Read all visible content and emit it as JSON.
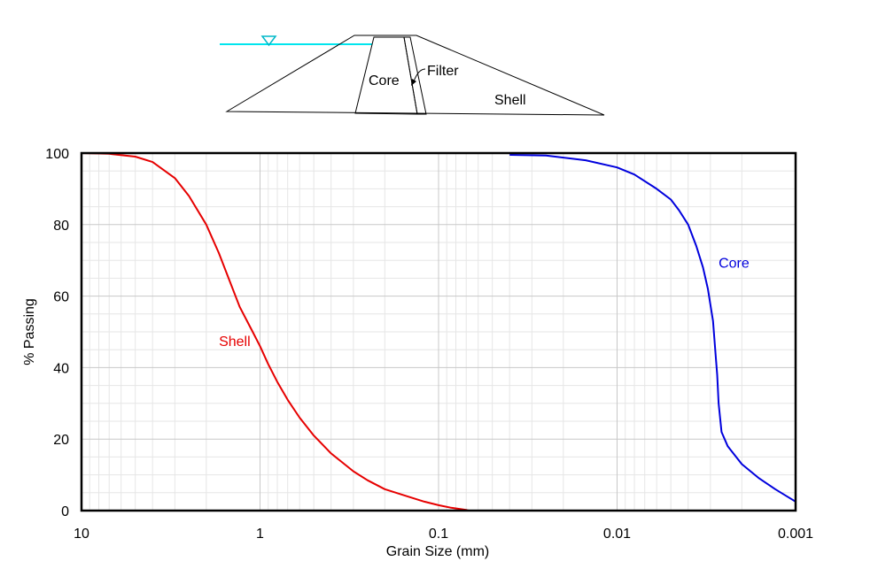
{
  "diagram": {
    "labels": {
      "core": "Core",
      "filter": "Filter",
      "shell": "Shell"
    },
    "water_color": "#00e5ee"
  },
  "chart_data": {
    "type": "line",
    "xlabel": "Grain Size (mm)",
    "ylabel": "% Passing",
    "x_scale": "log",
    "x_reversed": true,
    "xlim": [
      10,
      0.001
    ],
    "ylim": [
      0,
      100
    ],
    "x_ticks": [
      10,
      1,
      0.1,
      0.01,
      0.001
    ],
    "x_tick_labels": [
      "10",
      "1",
      "0.1",
      "0.01",
      "0.001"
    ],
    "y_ticks": [
      0,
      20,
      40,
      60,
      80,
      100
    ],
    "grid": true,
    "series": [
      {
        "name": "Shell",
        "color": "#e60000",
        "label_pos": [
          1.7,
          46
        ],
        "points": [
          [
            10,
            100
          ],
          [
            7,
            99.8
          ],
          [
            5,
            99
          ],
          [
            4,
            97.5
          ],
          [
            3,
            93
          ],
          [
            2.5,
            88
          ],
          [
            2,
            80
          ],
          [
            1.7,
            72
          ],
          [
            1.5,
            65
          ],
          [
            1.3,
            57
          ],
          [
            1.1,
            50
          ],
          [
            1.0,
            46
          ],
          [
            0.9,
            41
          ],
          [
            0.8,
            36
          ],
          [
            0.7,
            31
          ],
          [
            0.6,
            26
          ],
          [
            0.5,
            21
          ],
          [
            0.4,
            16
          ],
          [
            0.3,
            11
          ],
          [
            0.25,
            8.5
          ],
          [
            0.2,
            6
          ],
          [
            0.15,
            4
          ],
          [
            0.12,
            2.5
          ],
          [
            0.1,
            1.5
          ],
          [
            0.085,
            0.8
          ],
          [
            0.07,
            0.2
          ],
          [
            0.068,
            0
          ]
        ]
      },
      {
        "name": "Core",
        "color": "#0000dd",
        "label_pos": [
          0.0027,
          68
        ],
        "points": [
          [
            0.04,
            99.5
          ],
          [
            0.025,
            99.3
          ],
          [
            0.015,
            98
          ],
          [
            0.01,
            96
          ],
          [
            0.008,
            94
          ],
          [
            0.006,
            90
          ],
          [
            0.005,
            87
          ],
          [
            0.0045,
            84
          ],
          [
            0.004,
            80
          ],
          [
            0.0036,
            74
          ],
          [
            0.0033,
            68
          ],
          [
            0.0031,
            62
          ],
          [
            0.0029,
            53
          ],
          [
            0.0028,
            43
          ],
          [
            0.00275,
            38
          ],
          [
            0.0027,
            30
          ],
          [
            0.0026,
            22
          ],
          [
            0.0024,
            18
          ],
          [
            0.002,
            13
          ],
          [
            0.0016,
            9
          ],
          [
            0.0013,
            6
          ],
          [
            0.001,
            2.5
          ]
        ]
      }
    ]
  }
}
